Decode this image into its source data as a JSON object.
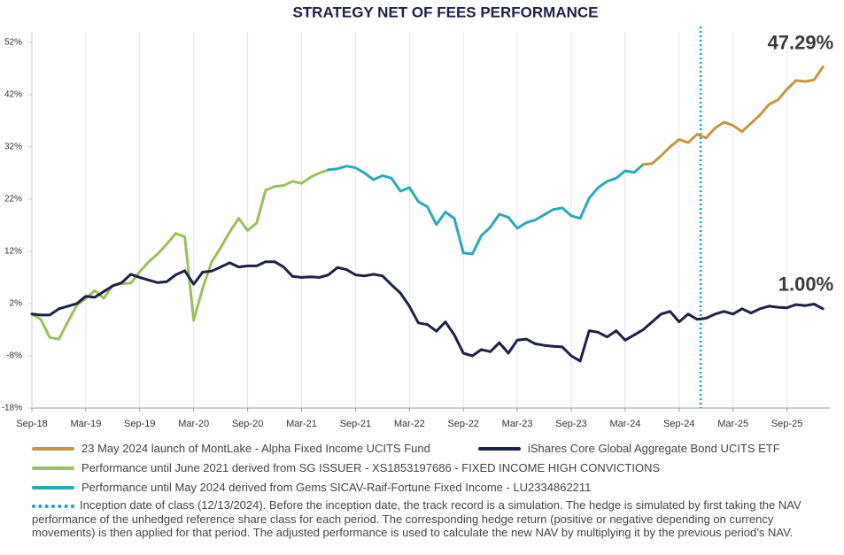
{
  "chart_data": {
    "type": "line",
    "title": "STRATEGY NET OF FEES PERFORMANCE",
    "categories": [
      "Sep-18",
      null,
      null,
      null,
      null,
      null,
      "Mar-19",
      null,
      null,
      null,
      null,
      null,
      "Sep-19",
      null,
      null,
      null,
      null,
      null,
      "Mar-20",
      null,
      null,
      null,
      null,
      null,
      "Sep-20",
      null,
      null,
      null,
      null,
      null,
      "Mar-21",
      null,
      null,
      null,
      null,
      null,
      "Sep-21",
      null,
      null,
      null,
      null,
      null,
      "Mar-22",
      null,
      null,
      null,
      null,
      null,
      "Sep-22",
      null,
      null,
      null,
      null,
      null,
      "Mar-23",
      null,
      null,
      null,
      null,
      null,
      "Sep-23",
      null,
      null,
      null,
      null,
      null,
      "Mar-24",
      null,
      null,
      null,
      null,
      null,
      "Sep-24",
      null,
      null,
      null,
      null,
      null,
      "Mar-25",
      null,
      null,
      null,
      null,
      null,
      "Sep-25",
      null,
      null,
      null,
      null
    ],
    "ylim": [
      -18,
      54
    ],
    "yticks": [
      {
        "value": 52,
        "label": "52%"
      },
      {
        "value": 42,
        "label": "42%"
      },
      {
        "value": 32,
        "label": "32%"
      },
      {
        "value": 22,
        "label": "22%"
      },
      {
        "value": 12,
        "label": "12%"
      },
      {
        "value": 2,
        "label": "2%"
      },
      {
        "value": -8,
        "label": "-8%"
      },
      {
        "value": -18,
        "label": "-18%"
      }
    ],
    "grid": true,
    "series": [
      {
        "name": "23 May 2024 launch of MontLake - Alpha Fixed Income UCITS Fund",
        "color": "#c4973f",
        "end_label": "47.29%",
        "values": [
          null,
          null,
          null,
          null,
          null,
          null,
          null,
          null,
          null,
          null,
          null,
          null,
          null,
          null,
          null,
          null,
          null,
          null,
          null,
          null,
          null,
          null,
          null,
          null,
          null,
          null,
          null,
          null,
          null,
          null,
          null,
          null,
          null,
          null,
          null,
          null,
          null,
          null,
          null,
          null,
          null,
          null,
          null,
          null,
          null,
          null,
          null,
          null,
          null,
          null,
          null,
          null,
          null,
          null,
          null,
          null,
          null,
          null,
          null,
          null,
          null,
          null,
          null,
          null,
          null,
          null,
          null,
          null,
          28.6,
          28.8,
          30.3,
          32,
          33.4,
          32.8,
          34.4,
          33.7,
          35.6,
          36.7,
          36.1,
          34.9,
          36.5,
          38.1,
          40.1,
          41,
          43,
          44.7,
          44.5,
          44.8,
          47.29
        ]
      },
      {
        "name": "iShares Core Global Aggregate Bond UCITS ETF",
        "color": "#1c2145",
        "end_label": "1.00%",
        "values": [
          0,
          -0.2,
          -0.2,
          1,
          1.5,
          2,
          3.4,
          3.2,
          4.3,
          5.4,
          6,
          7.6,
          7,
          6.5,
          6,
          6.2,
          7.5,
          8.3,
          5.7,
          8,
          8.2,
          9,
          9.8,
          9,
          9.2,
          9.2,
          10,
          10,
          9,
          7.2,
          7,
          7.1,
          7,
          7.5,
          8.9,
          8.5,
          7.5,
          7.3,
          7.6,
          7.3,
          5.6,
          4,
          1.5,
          -1.7,
          -2,
          -3.3,
          -1.5,
          -4,
          -7.5,
          -8,
          -6.8,
          -7.2,
          -5.5,
          -7.5,
          -5,
          -4.8,
          -5.7,
          -6,
          -6.2,
          -6.3,
          -8,
          -9,
          -3.2,
          -3.5,
          -4.4,
          -3.2,
          -5,
          -4,
          -3,
          -1.5,
          0,
          0.5,
          -1.5,
          0,
          -1,
          -0.8,
          0,
          0.5,
          0,
          1,
          0.2,
          1,
          1.5,
          1.3,
          1.2,
          1.8,
          1.6,
          1.9,
          1.0
        ]
      },
      {
        "name": "Performance until June 2021 derived from SG ISSUER - XS1853197686 - FIXED INCOME HIGH CONVICTIONS",
        "color": "#9bbf5b",
        "values": [
          0,
          -1,
          -4.5,
          -4.8,
          -1.5,
          1.7,
          3,
          4.5,
          3,
          5.5,
          5.8,
          5.9,
          8.1,
          10,
          11.5,
          13.4,
          15.4,
          14.8,
          -1.2,
          4.9,
          10,
          12.7,
          15.7,
          18.3,
          16,
          17.4,
          23.7,
          24.4,
          24.6,
          25.4,
          25,
          26.2,
          27,
          27.6,
          null,
          null,
          null,
          null,
          null,
          null,
          null,
          null,
          null,
          null,
          null,
          null,
          null,
          null,
          null,
          null,
          null,
          null,
          null,
          null,
          null,
          null,
          null,
          null,
          null,
          null,
          null,
          null,
          null,
          null,
          null,
          null,
          null,
          null,
          null,
          null,
          null,
          null,
          null,
          null,
          null,
          null,
          null,
          null,
          null,
          null,
          null,
          null,
          null,
          null,
          null,
          null,
          null,
          null,
          null
        ]
      },
      {
        "name": "Performance until May 2024 derived from Gems SICAV-Raif-Fortune Fixed Income - LU2334862211",
        "color": "#2aa9b8",
        "values": [
          null,
          null,
          null,
          null,
          null,
          null,
          null,
          null,
          null,
          null,
          null,
          null,
          null,
          null,
          null,
          null,
          null,
          null,
          null,
          null,
          null,
          null,
          null,
          null,
          null,
          null,
          null,
          null,
          null,
          null,
          null,
          null,
          null,
          27.6,
          27.8,
          28.3,
          28,
          27,
          25.7,
          26.5,
          26,
          23.5,
          24.2,
          21.5,
          20.5,
          17.1,
          19.5,
          18.3,
          11.7,
          11.5,
          15,
          16.6,
          19.1,
          18.5,
          16.4,
          17.5,
          18,
          19,
          20,
          20.3,
          18.8,
          18.3,
          22.2,
          24.2,
          25.4,
          26,
          27.4,
          27.1,
          28.6,
          null,
          null,
          null,
          null,
          null,
          null,
          null,
          null,
          null,
          null,
          null,
          null,
          null,
          null,
          null,
          null,
          null,
          null,
          null,
          null
        ]
      }
    ],
    "inception": {
      "label": "Inception date of class (12/13/2024). Before the inception date, the track record is a simulation. The hedge is simulated by first taking the NAV performance of the unhedged reference share class for each period. The corresponding hedge return (positive or negative depending on currency movements) is then applied for that period. The adjusted performance is used to calculate the new NAV by multiplying it by the previous period’s NAV.",
      "color": "#1a9fc0",
      "index": 74.4
    }
  }
}
